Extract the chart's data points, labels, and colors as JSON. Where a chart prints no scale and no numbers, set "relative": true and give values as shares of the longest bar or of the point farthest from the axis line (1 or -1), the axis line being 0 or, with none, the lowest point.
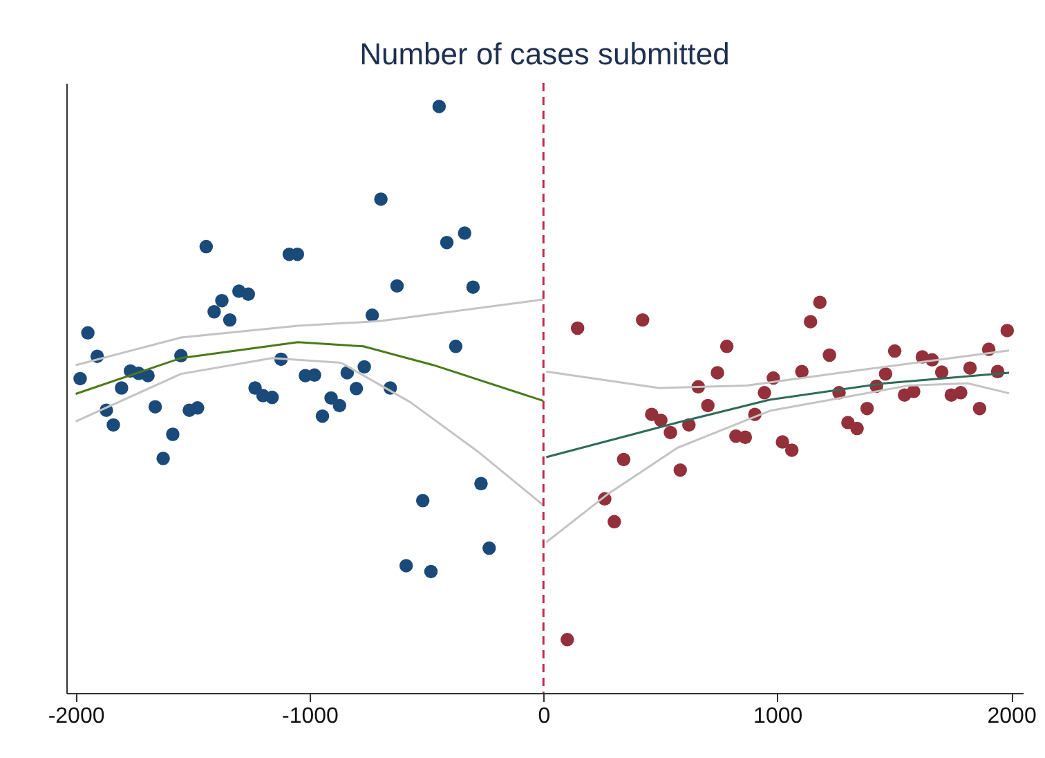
{
  "chart_data": {
    "type": "scatter",
    "title": "Number of cases submitted",
    "relative": true,
    "xlim": [
      -2040,
      2050
    ],
    "xticks": [
      -2000,
      -1000,
      0,
      1000,
      2000
    ],
    "grid": false,
    "series": [
      {
        "type": "scatter",
        "marker": "circle",
        "color": "#1a4a7a",
        "x": [
          -1981,
          -1948,
          -1908,
          -1869,
          -1839,
          -1804,
          -1766,
          -1731,
          -1691,
          -1660,
          -1626,
          -1585,
          -1550,
          -1514,
          -1479,
          -1442,
          -1408,
          -1375,
          -1341,
          -1302,
          -1262,
          -1233,
          -1199,
          -1160,
          -1122,
          -1087,
          -1052,
          -1018,
          -979,
          -945,
          -908,
          -872,
          -839,
          -800,
          -766,
          -732,
          -695,
          -655,
          -626,
          -587,
          -516,
          -481,
          -446,
          -413,
          -375,
          -337,
          -301,
          -267,
          -232
        ],
        "values": [
          0.536,
          0.614,
          0.574,
          0.482,
          0.457,
          0.52,
          0.549,
          0.545,
          0.541,
          0.488,
          0.4,
          0.441,
          0.575,
          0.482,
          0.486,
          0.761,
          0.65,
          0.669,
          0.636,
          0.685,
          0.68,
          0.52,
          0.507,
          0.504,
          0.569,
          0.748,
          0.748,
          0.541,
          0.542,
          0.472,
          0.503,
          0.49,
          0.546,
          0.519,
          0.556,
          0.644,
          0.842,
          0.52,
          0.694,
          0.217,
          0.328,
          0.207,
          1.0,
          0.768,
          0.591,
          0.784,
          0.692,
          0.357,
          0.247
        ]
      },
      {
        "type": "scatter",
        "marker": "circle",
        "color": "#93303a",
        "x": [
          102,
          146,
          262,
          303,
          343,
          424,
          463,
          502,
          543,
          585,
          622,
          662,
          703,
          744,
          784,
          823,
          863,
          904,
          945,
          983,
          1022,
          1062,
          1105,
          1142,
          1182,
          1223,
          1264,
          1302,
          1341,
          1384,
          1424,
          1463,
          1502,
          1544,
          1583,
          1620,
          1662,
          1703,
          1744,
          1784,
          1824,
          1865,
          1904,
          1942,
          1983
        ],
        "values": [
          0.091,
          0.622,
          0.331,
          0.292,
          0.398,
          0.636,
          0.475,
          0.465,
          0.444,
          0.38,
          0.457,
          0.522,
          0.49,
          0.546,
          0.591,
          0.438,
          0.436,
          0.475,
          0.512,
          0.537,
          0.428,
          0.414,
          0.548,
          0.633,
          0.666,
          0.576,
          0.512,
          0.461,
          0.451,
          0.485,
          0.523,
          0.544,
          0.583,
          0.508,
          0.514,
          0.573,
          0.568,
          0.547,
          0.508,
          0.512,
          0.554,
          0.485,
          0.586,
          0.548,
          0.618
        ]
      },
      {
        "type": "line",
        "marker": "none",
        "line_style": "solid",
        "color": "#c4c4c4",
        "x": [
          -2000,
          -1550,
          -1050,
          -700,
          0
        ],
        "values": [
          0.559,
          0.606,
          0.626,
          0.634,
          0.671
        ]
      },
      {
        "type": "line",
        "marker": "none",
        "line_style": "solid",
        "color": "#c4c4c4",
        "x": [
          -2000,
          -1550,
          -1160,
          -865,
          -570,
          -275,
          0
        ],
        "values": [
          0.463,
          0.544,
          0.571,
          0.563,
          0.496,
          0.41,
          0.32
        ]
      },
      {
        "type": "line",
        "marker": "none",
        "line_style": "solid",
        "color": "#4a7a1a",
        "x": [
          -2000,
          -1550,
          -1050,
          -770,
          -470,
          0
        ],
        "values": [
          0.51,
          0.571,
          0.598,
          0.591,
          0.559,
          0.498
        ]
      },
      {
        "type": "line",
        "marker": "none",
        "line_style": "solid",
        "color": "#c4c4c4",
        "x": [
          12,
          494,
          869,
          1361,
          1991
        ],
        "values": [
          0.548,
          0.52,
          0.524,
          0.551,
          0.584
        ]
      },
      {
        "type": "line",
        "marker": "none",
        "line_style": "solid",
        "color": "#c4c4c4",
        "x": [
          12,
          278,
          573,
          967,
          1558,
          1814,
          1991
        ],
        "values": [
          0.257,
          0.34,
          0.418,
          0.481,
          0.524,
          0.528,
          0.511
        ]
      },
      {
        "type": "line",
        "marker": "none",
        "line_style": "solid",
        "color": "#2f6b5a",
        "x": [
          12,
          573,
          967,
          1459,
          1991
        ],
        "values": [
          0.402,
          0.461,
          0.5,
          0.528,
          0.546
        ]
      }
    ],
    "ref_lines": [
      {
        "axis": "x",
        "value": 0,
        "color": "#c0294a",
        "line_style": "dashed"
      }
    ]
  }
}
